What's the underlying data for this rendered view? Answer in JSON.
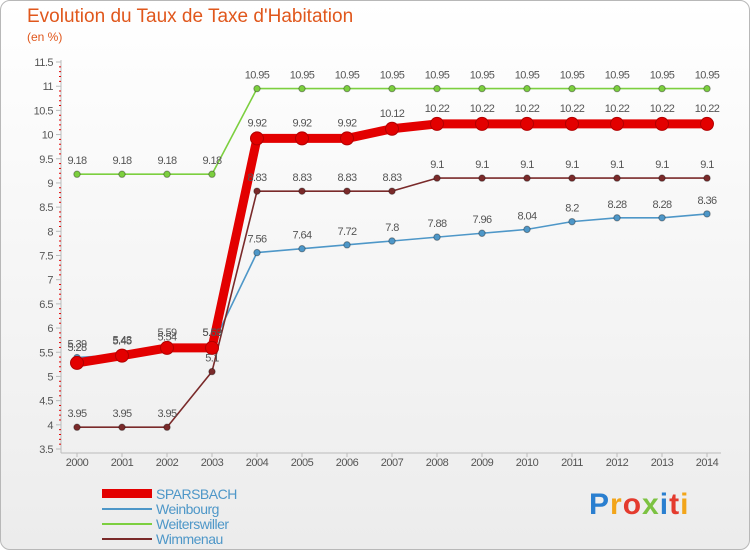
{
  "title": "Evolution du Taux de Taxe d'Habitation",
  "unit_label": "(en %)",
  "logo": {
    "text": "Proxiti",
    "letter_colors": [
      "#2a7fd0",
      "#f2a51a",
      "#e43b2e",
      "#7cc242",
      "#2a7fd0",
      "#e43b2e",
      "#f2a51a"
    ]
  },
  "colors": {
    "title": "#e0571c",
    "axis": "#bbbbbb",
    "tick_red": "#e30000"
  },
  "chart_data": {
    "type": "line",
    "title": "Evolution du Taux de Taxe d'Habitation",
    "ylabel": "(en %)",
    "xlabel": "",
    "categories": [
      "2000",
      "2001",
      "2002",
      "2003",
      "2004",
      "2005",
      "2006",
      "2007",
      "2008",
      "2009",
      "2010",
      "2011",
      "2012",
      "2013",
      "2014"
    ],
    "ylim": [
      3.5,
      11.5
    ],
    "yticks": [
      "3.5",
      "4",
      "4.5",
      "5",
      "5.5",
      "6",
      "6.5",
      "7",
      "7.5",
      "8",
      "8.5",
      "9",
      "9.5",
      "10",
      "10.5",
      "11",
      "11.5"
    ],
    "legend_position": "bottom-left",
    "series": [
      {
        "name": "SPARSBACH",
        "color": "#e30000",
        "highlight": true,
        "values": [
          5.28,
          5.43,
          5.59,
          5.59,
          9.92,
          9.92,
          9.92,
          10.12,
          10.22,
          10.22,
          10.22,
          10.22,
          10.22,
          10.22,
          10.22
        ],
        "labels": [
          "5.28",
          "5.43",
          "5.59",
          "5.59",
          "9.92",
          "9.92",
          "9.92",
          "10.12",
          "10.22",
          "10.22",
          "10.22",
          "10.22",
          "10.22",
          "10.22",
          "10.22"
        ]
      },
      {
        "name": "Weinbourg",
        "color": "#4e97c8",
        "highlight": false,
        "values": [
          5.39,
          5.45,
          5.54,
          5.63,
          7.56,
          7.64,
          7.72,
          7.8,
          7.88,
          7.96,
          8.04,
          8.2,
          8.28,
          8.28,
          8.36
        ],
        "labels": [
          "5.39",
          "5.45",
          "5.54",
          "5.63",
          "7.56",
          "7.64",
          "7.72",
          "7.8",
          "7.88",
          "7.96",
          "8.04",
          "8.2",
          "8.28",
          "8.28",
          "8.36"
        ]
      },
      {
        "name": "Weiterswiller",
        "color": "#7ccf3f",
        "highlight": false,
        "values": [
          9.18,
          9.18,
          9.18,
          9.18,
          10.95,
          10.95,
          10.95,
          10.95,
          10.95,
          10.95,
          10.95,
          10.95,
          10.95,
          10.95,
          10.95
        ],
        "labels": [
          "9.18",
          "9.18",
          "9.18",
          "9.18",
          "10.95",
          "10.95",
          "10.95",
          "10.95",
          "10.95",
          "10.95",
          "10.95",
          "10.95",
          "10.95",
          "10.95",
          "10.95"
        ]
      },
      {
        "name": "Wimmenau",
        "color": "#7a2a2a",
        "highlight": false,
        "values": [
          3.95,
          3.95,
          3.95,
          5.1,
          8.83,
          8.83,
          8.83,
          8.83,
          9.1,
          9.1,
          9.1,
          9.1,
          9.1,
          9.1,
          9.1
        ],
        "labels": [
          "3.95",
          "3.95",
          "3.95",
          "5.1",
          "8.83",
          "8.83",
          "8.83",
          "8.83",
          "9.1",
          "9.1",
          "9.1",
          "9.1",
          "9.1",
          "9.1",
          "9.1"
        ]
      }
    ]
  }
}
